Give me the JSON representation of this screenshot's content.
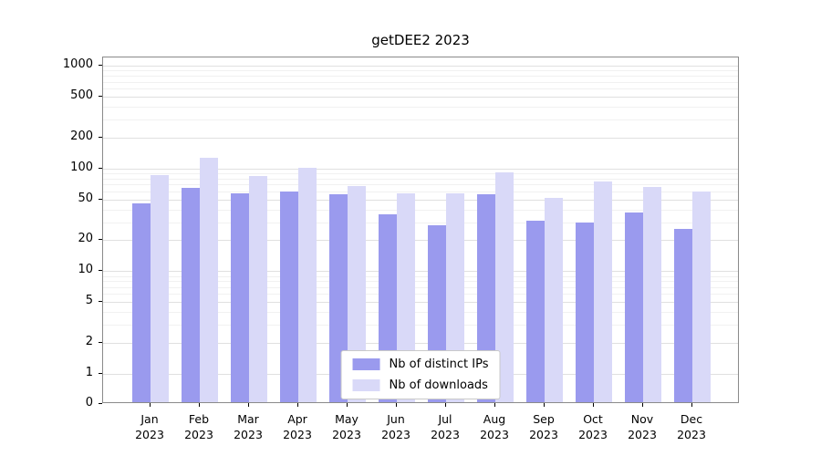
{
  "chart_data": {
    "type": "bar",
    "title": "getDEE2 2023",
    "categories": [
      "Jan",
      "Feb",
      "Mar",
      "Apr",
      "May",
      "Jun",
      "Jul",
      "Aug",
      "Sep",
      "Oct",
      "Nov",
      "Dec"
    ],
    "category_year": "2023",
    "series": [
      {
        "name": "Nb of distinct IPs",
        "color": "#9a9aee",
        "values": [
          46,
          65,
          57,
          60,
          56,
          36,
          28,
          56,
          31,
          30,
          37,
          26
        ]
      },
      {
        "name": "Nb of downloads",
        "color": "#d9d9f8",
        "values": [
          86,
          128,
          84,
          102,
          68,
          57,
          57,
          91,
          52,
          74,
          66,
          60
        ]
      }
    ],
    "yscale": "symlog",
    "yticks": [
      0,
      1,
      2,
      5,
      10,
      20,
      50,
      100,
      200,
      500,
      1000
    ],
    "ylim": [
      0,
      1000
    ],
    "grid": true,
    "legend_position": "bottom-center"
  }
}
